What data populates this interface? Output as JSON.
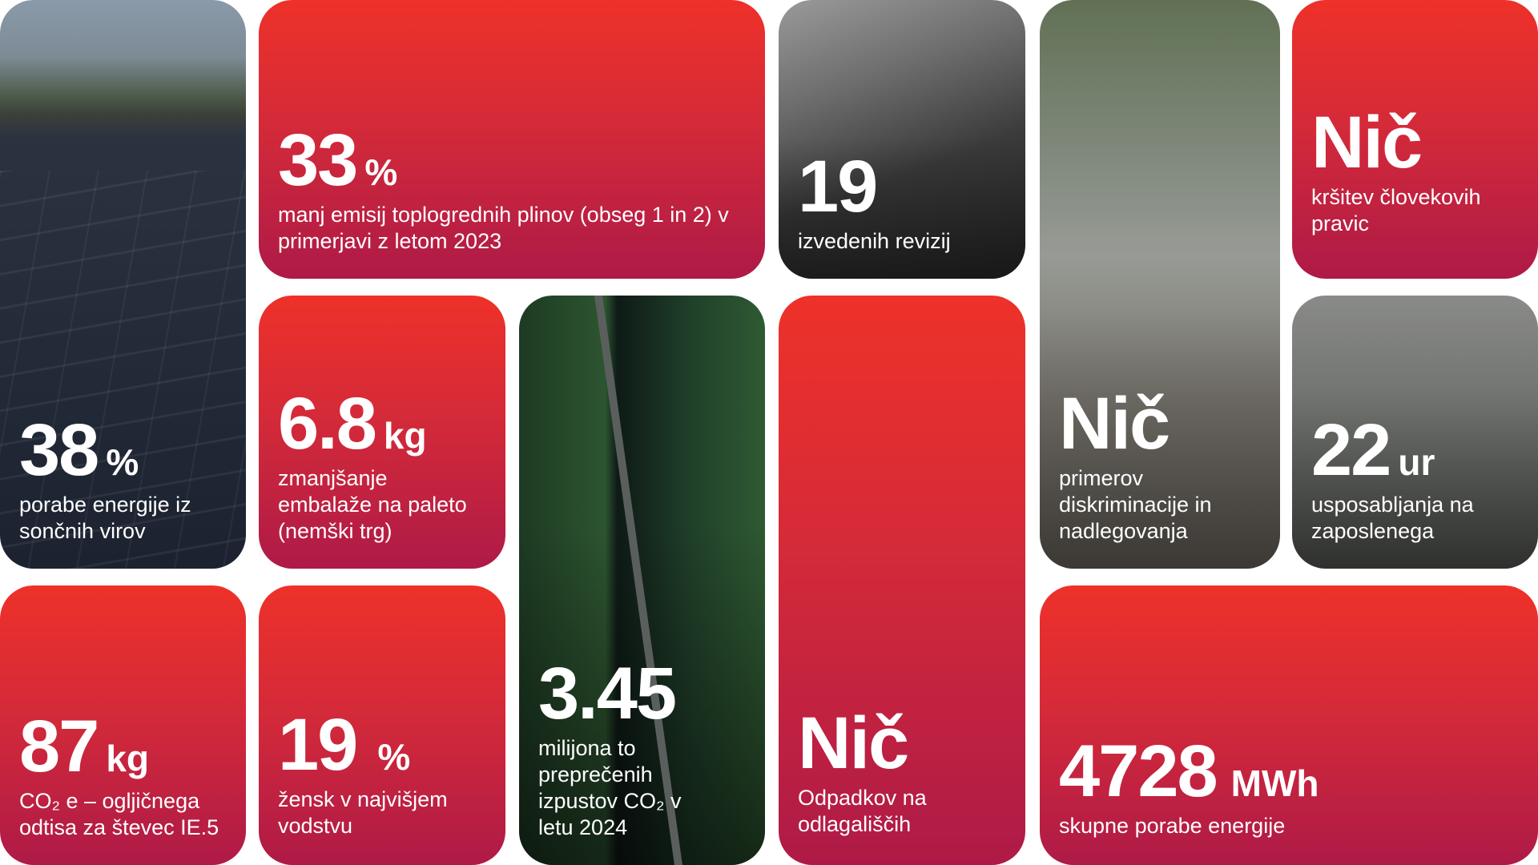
{
  "brand_gradient": {
    "top": "#ee3129",
    "bottom": "#ae1a47"
  },
  "cards": {
    "solar": {
      "value": "38",
      "unit": "%",
      "description": "porabe energije iz sončnih virov",
      "image": "solar-panels-rooftop-photo"
    },
    "emissions": {
      "value": "33",
      "unit": "%",
      "description": "manj emisij toplogrednih plinov (obseg 1 in 2) v primerjavi z letom 2023"
    },
    "audits": {
      "value": "19",
      "unit": "",
      "description": "izvedenih revizij",
      "image": "laptop-photo"
    },
    "discrimination": {
      "value": "Nič",
      "unit": "",
      "description": "primerov diskriminacije in nadlegovanja",
      "image": "people-walking-office-photo"
    },
    "human_rights": {
      "value": "Nič",
      "unit": "",
      "description": "kršitev človekovih pravic"
    },
    "packaging": {
      "value": "6.8",
      "unit": "kg",
      "description": "zmanjšanje embalaže na paleto (nemški trg)"
    },
    "co2_avoided": {
      "value": "3.45",
      "unit": "",
      "description": "milijona to preprečenih izpustov CO₂ v letu 2024",
      "image": "forest-road-aerial-photo"
    },
    "landfill": {
      "value": "Nič",
      "unit": "",
      "description": "Odpadkov na odlagališčih"
    },
    "training": {
      "value": "22",
      "unit": "ur",
      "description": "usposabljanja na zaposlenega",
      "image": "classroom-training-photo"
    },
    "footprint": {
      "value": "87",
      "unit": "kg",
      "description": "CO₂ e – ogljičnega odtisa za števec IE.5"
    },
    "women": {
      "value": "19",
      "unit": "%",
      "description": "žensk v najvišjem vodstvu"
    },
    "energy": {
      "value": "4728",
      "unit": "MWh",
      "description": "skupne porabe energije"
    }
  }
}
